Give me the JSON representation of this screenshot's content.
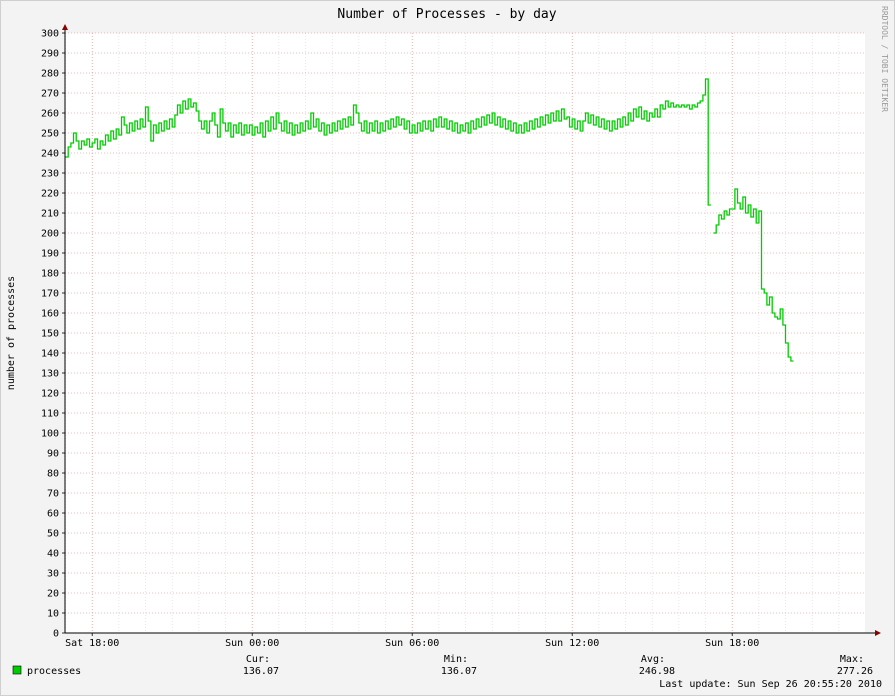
{
  "chart_data": {
    "type": "line",
    "title": "Number of Processes - by day",
    "ylabel": "number of processes",
    "ylim": [
      0,
      300
    ],
    "y_ticks": [
      0,
      10,
      20,
      30,
      40,
      50,
      60,
      70,
      80,
      90,
      100,
      110,
      120,
      130,
      140,
      150,
      160,
      170,
      180,
      190,
      200,
      210,
      220,
      230,
      240,
      250,
      260,
      270,
      280,
      290,
      300
    ],
    "x_ticks": [
      {
        "label": "Sat 18:00",
        "hour": 0
      },
      {
        "label": "Sun 00:00",
        "hour": 6
      },
      {
        "label": "Sun 06:00",
        "hour": 12
      },
      {
        "label": "Sun 12:00",
        "hour": 18
      },
      {
        "label": "Sun 18:00",
        "hour": 24
      }
    ],
    "xlim_hours": [
      -1.02,
      28.98
    ],
    "grid": true,
    "legend_position": "bottom-left",
    "series": [
      {
        "name": "processes",
        "color": "#00cc00",
        "points": [
          [
            -1.0,
            238
          ],
          [
            -0.9,
            243
          ],
          [
            -0.8,
            245
          ],
          [
            -0.7,
            250
          ],
          [
            -0.6,
            246
          ],
          [
            -0.5,
            242
          ],
          [
            -0.4,
            246
          ],
          [
            -0.3,
            244
          ],
          [
            -0.2,
            247
          ],
          [
            -0.1,
            243
          ],
          [
            0.0,
            245
          ],
          [
            0.1,
            247
          ],
          [
            0.2,
            242
          ],
          [
            0.3,
            246
          ],
          [
            0.4,
            244
          ],
          [
            0.5,
            249
          ],
          [
            0.6,
            246
          ],
          [
            0.7,
            251
          ],
          [
            0.8,
            247
          ],
          [
            0.9,
            252
          ],
          [
            1.0,
            249
          ],
          [
            1.1,
            258
          ],
          [
            1.2,
            254
          ],
          [
            1.3,
            250
          ],
          [
            1.4,
            255
          ],
          [
            1.5,
            251
          ],
          [
            1.6,
            256
          ],
          [
            1.7,
            252
          ],
          [
            1.8,
            257
          ],
          [
            1.9,
            253
          ],
          [
            2.0,
            263
          ],
          [
            2.1,
            256
          ],
          [
            2.2,
            246
          ],
          [
            2.3,
            254
          ],
          [
            2.4,
            250
          ],
          [
            2.5,
            255
          ],
          [
            2.6,
            251
          ],
          [
            2.7,
            256
          ],
          [
            2.8,
            252
          ],
          [
            2.9,
            257
          ],
          [
            3.0,
            253
          ],
          [
            3.1,
            259
          ],
          [
            3.2,
            264
          ],
          [
            3.3,
            260
          ],
          [
            3.4,
            266
          ],
          [
            3.5,
            262
          ],
          [
            3.6,
            267
          ],
          [
            3.7,
            263
          ],
          [
            3.8,
            265
          ],
          [
            3.9,
            261
          ],
          [
            4.0,
            256
          ],
          [
            4.1,
            252
          ],
          [
            4.2,
            256
          ],
          [
            4.3,
            250
          ],
          [
            4.4,
            256
          ],
          [
            4.5,
            260
          ],
          [
            4.6,
            254
          ],
          [
            4.7,
            248
          ],
          [
            4.8,
            262
          ],
          [
            4.9,
            255
          ],
          [
            5.0,
            251
          ],
          [
            5.1,
            255
          ],
          [
            5.2,
            248
          ],
          [
            5.3,
            254
          ],
          [
            5.4,
            250
          ],
          [
            5.5,
            255
          ],
          [
            5.6,
            249
          ],
          [
            5.7,
            254
          ],
          [
            5.8,
            250
          ],
          [
            5.9,
            254
          ],
          [
            6.0,
            249
          ],
          [
            6.1,
            253
          ],
          [
            6.2,
            250
          ],
          [
            6.3,
            255
          ],
          [
            6.4,
            248
          ],
          [
            6.5,
            256
          ],
          [
            6.6,
            251
          ],
          [
            6.7,
            258
          ],
          [
            6.8,
            252
          ],
          [
            6.9,
            260
          ],
          [
            7.0,
            255
          ],
          [
            7.1,
            251
          ],
          [
            7.2,
            256
          ],
          [
            7.3,
            250
          ],
          [
            7.4,
            255
          ],
          [
            7.5,
            249
          ],
          [
            7.6,
            254
          ],
          [
            7.7,
            250
          ],
          [
            7.8,
            255
          ],
          [
            7.9,
            251
          ],
          [
            8.0,
            256
          ],
          [
            8.1,
            252
          ],
          [
            8.2,
            260
          ],
          [
            8.3,
            253
          ],
          [
            8.4,
            257
          ],
          [
            8.5,
            251
          ],
          [
            8.6,
            255
          ],
          [
            8.7,
            249
          ],
          [
            8.8,
            254
          ],
          [
            8.9,
            250
          ],
          [
            9.0,
            255
          ],
          [
            9.1,
            251
          ],
          [
            9.2,
            256
          ],
          [
            9.3,
            252
          ],
          [
            9.4,
            257
          ],
          [
            9.5,
            253
          ],
          [
            9.6,
            258
          ],
          [
            9.7,
            254
          ],
          [
            9.8,
            264
          ],
          [
            9.9,
            260
          ],
          [
            10.0,
            255
          ],
          [
            10.1,
            251
          ],
          [
            10.2,
            256
          ],
          [
            10.3,
            250
          ],
          [
            10.4,
            255
          ],
          [
            10.5,
            251
          ],
          [
            10.6,
            256
          ],
          [
            10.7,
            250
          ],
          [
            10.8,
            255
          ],
          [
            10.9,
            251
          ],
          [
            11.0,
            256
          ],
          [
            11.1,
            252
          ],
          [
            11.2,
            257
          ],
          [
            11.3,
            253
          ],
          [
            11.4,
            258
          ],
          [
            11.5,
            254
          ],
          [
            11.6,
            257
          ],
          [
            11.7,
            252
          ],
          [
            11.8,
            256
          ],
          [
            11.9,
            250
          ],
          [
            12.0,
            254
          ],
          [
            12.1,
            250
          ],
          [
            12.2,
            255
          ],
          [
            12.3,
            251
          ],
          [
            12.4,
            256
          ],
          [
            12.5,
            252
          ],
          [
            12.6,
            256
          ],
          [
            12.7,
            251
          ],
          [
            12.8,
            257
          ],
          [
            12.9,
            253
          ],
          [
            13.0,
            258
          ],
          [
            13.1,
            253
          ],
          [
            13.2,
            257
          ],
          [
            13.3,
            252
          ],
          [
            13.4,
            256
          ],
          [
            13.5,
            251
          ],
          [
            13.6,
            255
          ],
          [
            13.7,
            250
          ],
          [
            13.8,
            254
          ],
          [
            13.9,
            251
          ],
          [
            14.0,
            255
          ],
          [
            14.1,
            250
          ],
          [
            14.2,
            256
          ],
          [
            14.3,
            252
          ],
          [
            14.4,
            257
          ],
          [
            14.5,
            253
          ],
          [
            14.6,
            258
          ],
          [
            14.7,
            254
          ],
          [
            14.8,
            259
          ],
          [
            14.9,
            255
          ],
          [
            15.0,
            260
          ],
          [
            15.1,
            254
          ],
          [
            15.2,
            258
          ],
          [
            15.3,
            253
          ],
          [
            15.4,
            257
          ],
          [
            15.5,
            252
          ],
          [
            15.6,
            256
          ],
          [
            15.7,
            251
          ],
          [
            15.8,
            255
          ],
          [
            15.9,
            250
          ],
          [
            16.0,
            254
          ],
          [
            16.1,
            250
          ],
          [
            16.2,
            255
          ],
          [
            16.3,
            251
          ],
          [
            16.4,
            256
          ],
          [
            16.5,
            252
          ],
          [
            16.6,
            257
          ],
          [
            16.7,
            253
          ],
          [
            16.8,
            258
          ],
          [
            16.9,
            254
          ],
          [
            17.0,
            259
          ],
          [
            17.1,
            255
          ],
          [
            17.2,
            260
          ],
          [
            17.3,
            256
          ],
          [
            17.4,
            261
          ],
          [
            17.5,
            256
          ],
          [
            17.6,
            262
          ],
          [
            17.7,
            257
          ],
          [
            17.8,
            258
          ],
          [
            17.9,
            253
          ],
          [
            18.0,
            257
          ],
          [
            18.1,
            252
          ],
          [
            18.2,
            256
          ],
          [
            18.3,
            251
          ],
          [
            18.4,
            256
          ],
          [
            18.5,
            260
          ],
          [
            18.6,
            255
          ],
          [
            18.7,
            259
          ],
          [
            18.8,
            254
          ],
          [
            18.9,
            258
          ],
          [
            19.0,
            253
          ],
          [
            19.1,
            257
          ],
          [
            19.2,
            252
          ],
          [
            19.3,
            256
          ],
          [
            19.4,
            251
          ],
          [
            19.5,
            256
          ],
          [
            19.6,
            252
          ],
          [
            19.7,
            257
          ],
          [
            19.8,
            253
          ],
          [
            19.9,
            258
          ],
          [
            20.0,
            254
          ],
          [
            20.1,
            260
          ],
          [
            20.2,
            256
          ],
          [
            20.3,
            262
          ],
          [
            20.4,
            258
          ],
          [
            20.5,
            263
          ],
          [
            20.6,
            257
          ],
          [
            20.7,
            261
          ],
          [
            20.8,
            256
          ],
          [
            20.9,
            260
          ],
          [
            21.0,
            258
          ],
          [
            21.1,
            262
          ],
          [
            21.2,
            258
          ],
          [
            21.3,
            264
          ],
          [
            21.4,
            262
          ],
          [
            21.5,
            266
          ],
          [
            21.6,
            263
          ],
          [
            21.7,
            265
          ],
          [
            21.8,
            263
          ],
          [
            21.9,
            264
          ],
          [
            22.0,
            263
          ],
          [
            22.1,
            264
          ],
          [
            22.2,
            263
          ],
          [
            22.3,
            264
          ],
          [
            22.4,
            262
          ],
          [
            22.5,
            264
          ],
          [
            22.6,
            263
          ],
          [
            22.7,
            265
          ],
          [
            22.8,
            266
          ],
          [
            22.9,
            269
          ],
          [
            23.0,
            277
          ],
          [
            23.1,
            214
          ],
          [
            23.3,
            200
          ],
          [
            23.4,
            204
          ],
          [
            23.5,
            209
          ],
          [
            23.6,
            207
          ],
          [
            23.7,
            211
          ],
          [
            23.8,
            209
          ],
          [
            23.9,
            212
          ],
          [
            24.0,
            212
          ],
          [
            24.1,
            222
          ],
          [
            24.2,
            215
          ],
          [
            24.3,
            212
          ],
          [
            24.4,
            218
          ],
          [
            24.5,
            210
          ],
          [
            24.6,
            214
          ],
          [
            24.7,
            208
          ],
          [
            24.8,
            212
          ],
          [
            24.9,
            205
          ],
          [
            25.0,
            211
          ],
          [
            25.1,
            172
          ],
          [
            25.2,
            170
          ],
          [
            25.3,
            164
          ],
          [
            25.4,
            168
          ],
          [
            25.5,
            160
          ],
          [
            25.6,
            158
          ],
          [
            25.7,
            157
          ],
          [
            25.8,
            162
          ],
          [
            25.9,
            154
          ],
          [
            26.0,
            145
          ],
          [
            26.1,
            138
          ],
          [
            26.2,
            136
          ]
        ]
      }
    ],
    "legend": [
      {
        "name": "processes",
        "color": "#00cc00"
      }
    ],
    "stats": {
      "cur_label": "Cur:",
      "cur_value": "136.07",
      "min_label": "Min:",
      "min_value": "136.07",
      "avg_label": "Avg:",
      "avg_value": "246.98",
      "max_label": "Max:",
      "max_value": "277.26"
    },
    "last_update": "Last update: Sun Sep 26 20:55:20 2010",
    "watermark": "RRDTOOL / TOBI OETIKER"
  }
}
